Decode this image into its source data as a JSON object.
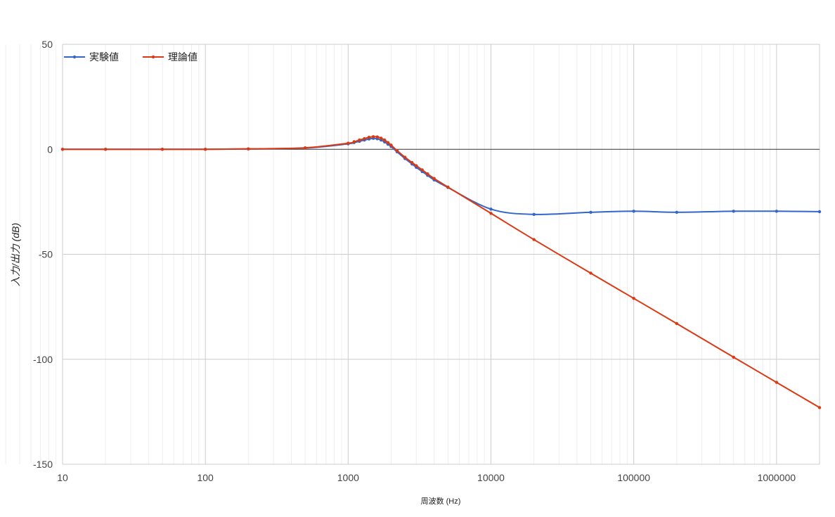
{
  "chart_data": {
    "type": "line",
    "xlabel": "周波数 (Hz)",
    "ylabel": "入力/出力 (dB)",
    "x_scale": "log",
    "xlim": [
      10,
      2000000
    ],
    "ylim": [
      -150,
      50
    ],
    "x_ticks": [
      "10",
      "100",
      "1000",
      "10000",
      "100000",
      "1000000"
    ],
    "y_ticks": [
      "50",
      "0",
      "-50",
      "-100",
      "-150"
    ],
    "grid": true,
    "legend_position": "top-left",
    "series": [
      {
        "name": "実験値",
        "color": "#3366cc",
        "x": [
          10,
          20,
          50,
          100,
          200,
          500,
          1000,
          1100,
          1200,
          1300,
          1400,
          1500,
          1600,
          1700,
          1800,
          1900,
          2000,
          2200,
          2500,
          2800,
          3000,
          3300,
          3600,
          4000,
          5000,
          10000,
          20000,
          50000,
          100000,
          200000,
          500000,
          1000000,
          2000000
        ],
        "y": [
          0,
          0,
          0,
          0,
          0.2,
          0.6,
          2.6,
          3.2,
          3.8,
          4.4,
          4.9,
          5.2,
          5.0,
          4.4,
          3.5,
          2.4,
          1.3,
          -1.2,
          -4.4,
          -7.0,
          -8.6,
          -10.6,
          -12.4,
          -14.6,
          -18.2,
          -28.5,
          -31.0,
          -30.0,
          -29.5,
          -30.0,
          -29.5,
          -29.5,
          -29.7
        ]
      },
      {
        "name": "理論値",
        "color": "#dc3912",
        "x": [
          10,
          20,
          50,
          100,
          200,
          500,
          1000,
          1100,
          1200,
          1300,
          1400,
          1500,
          1600,
          1700,
          1800,
          1900,
          2000,
          2200,
          2500,
          2800,
          3000,
          3300,
          3600,
          4000,
          5000,
          10000,
          20000,
          50000,
          100000,
          200000,
          500000,
          1000000,
          2000000
        ],
        "y": [
          0,
          0,
          0,
          0,
          0.2,
          0.7,
          2.9,
          3.6,
          4.4,
          5.1,
          5.7,
          6.0,
          5.9,
          5.3,
          4.4,
          3.2,
          2.0,
          -0.6,
          -3.8,
          -6.3,
          -7.8,
          -9.8,
          -11.7,
          -13.9,
          -18.0,
          -30.5,
          -43.0,
          -59.0,
          -71.0,
          -83.0,
          -99.0,
          -111.0,
          -123.0
        ]
      }
    ]
  }
}
